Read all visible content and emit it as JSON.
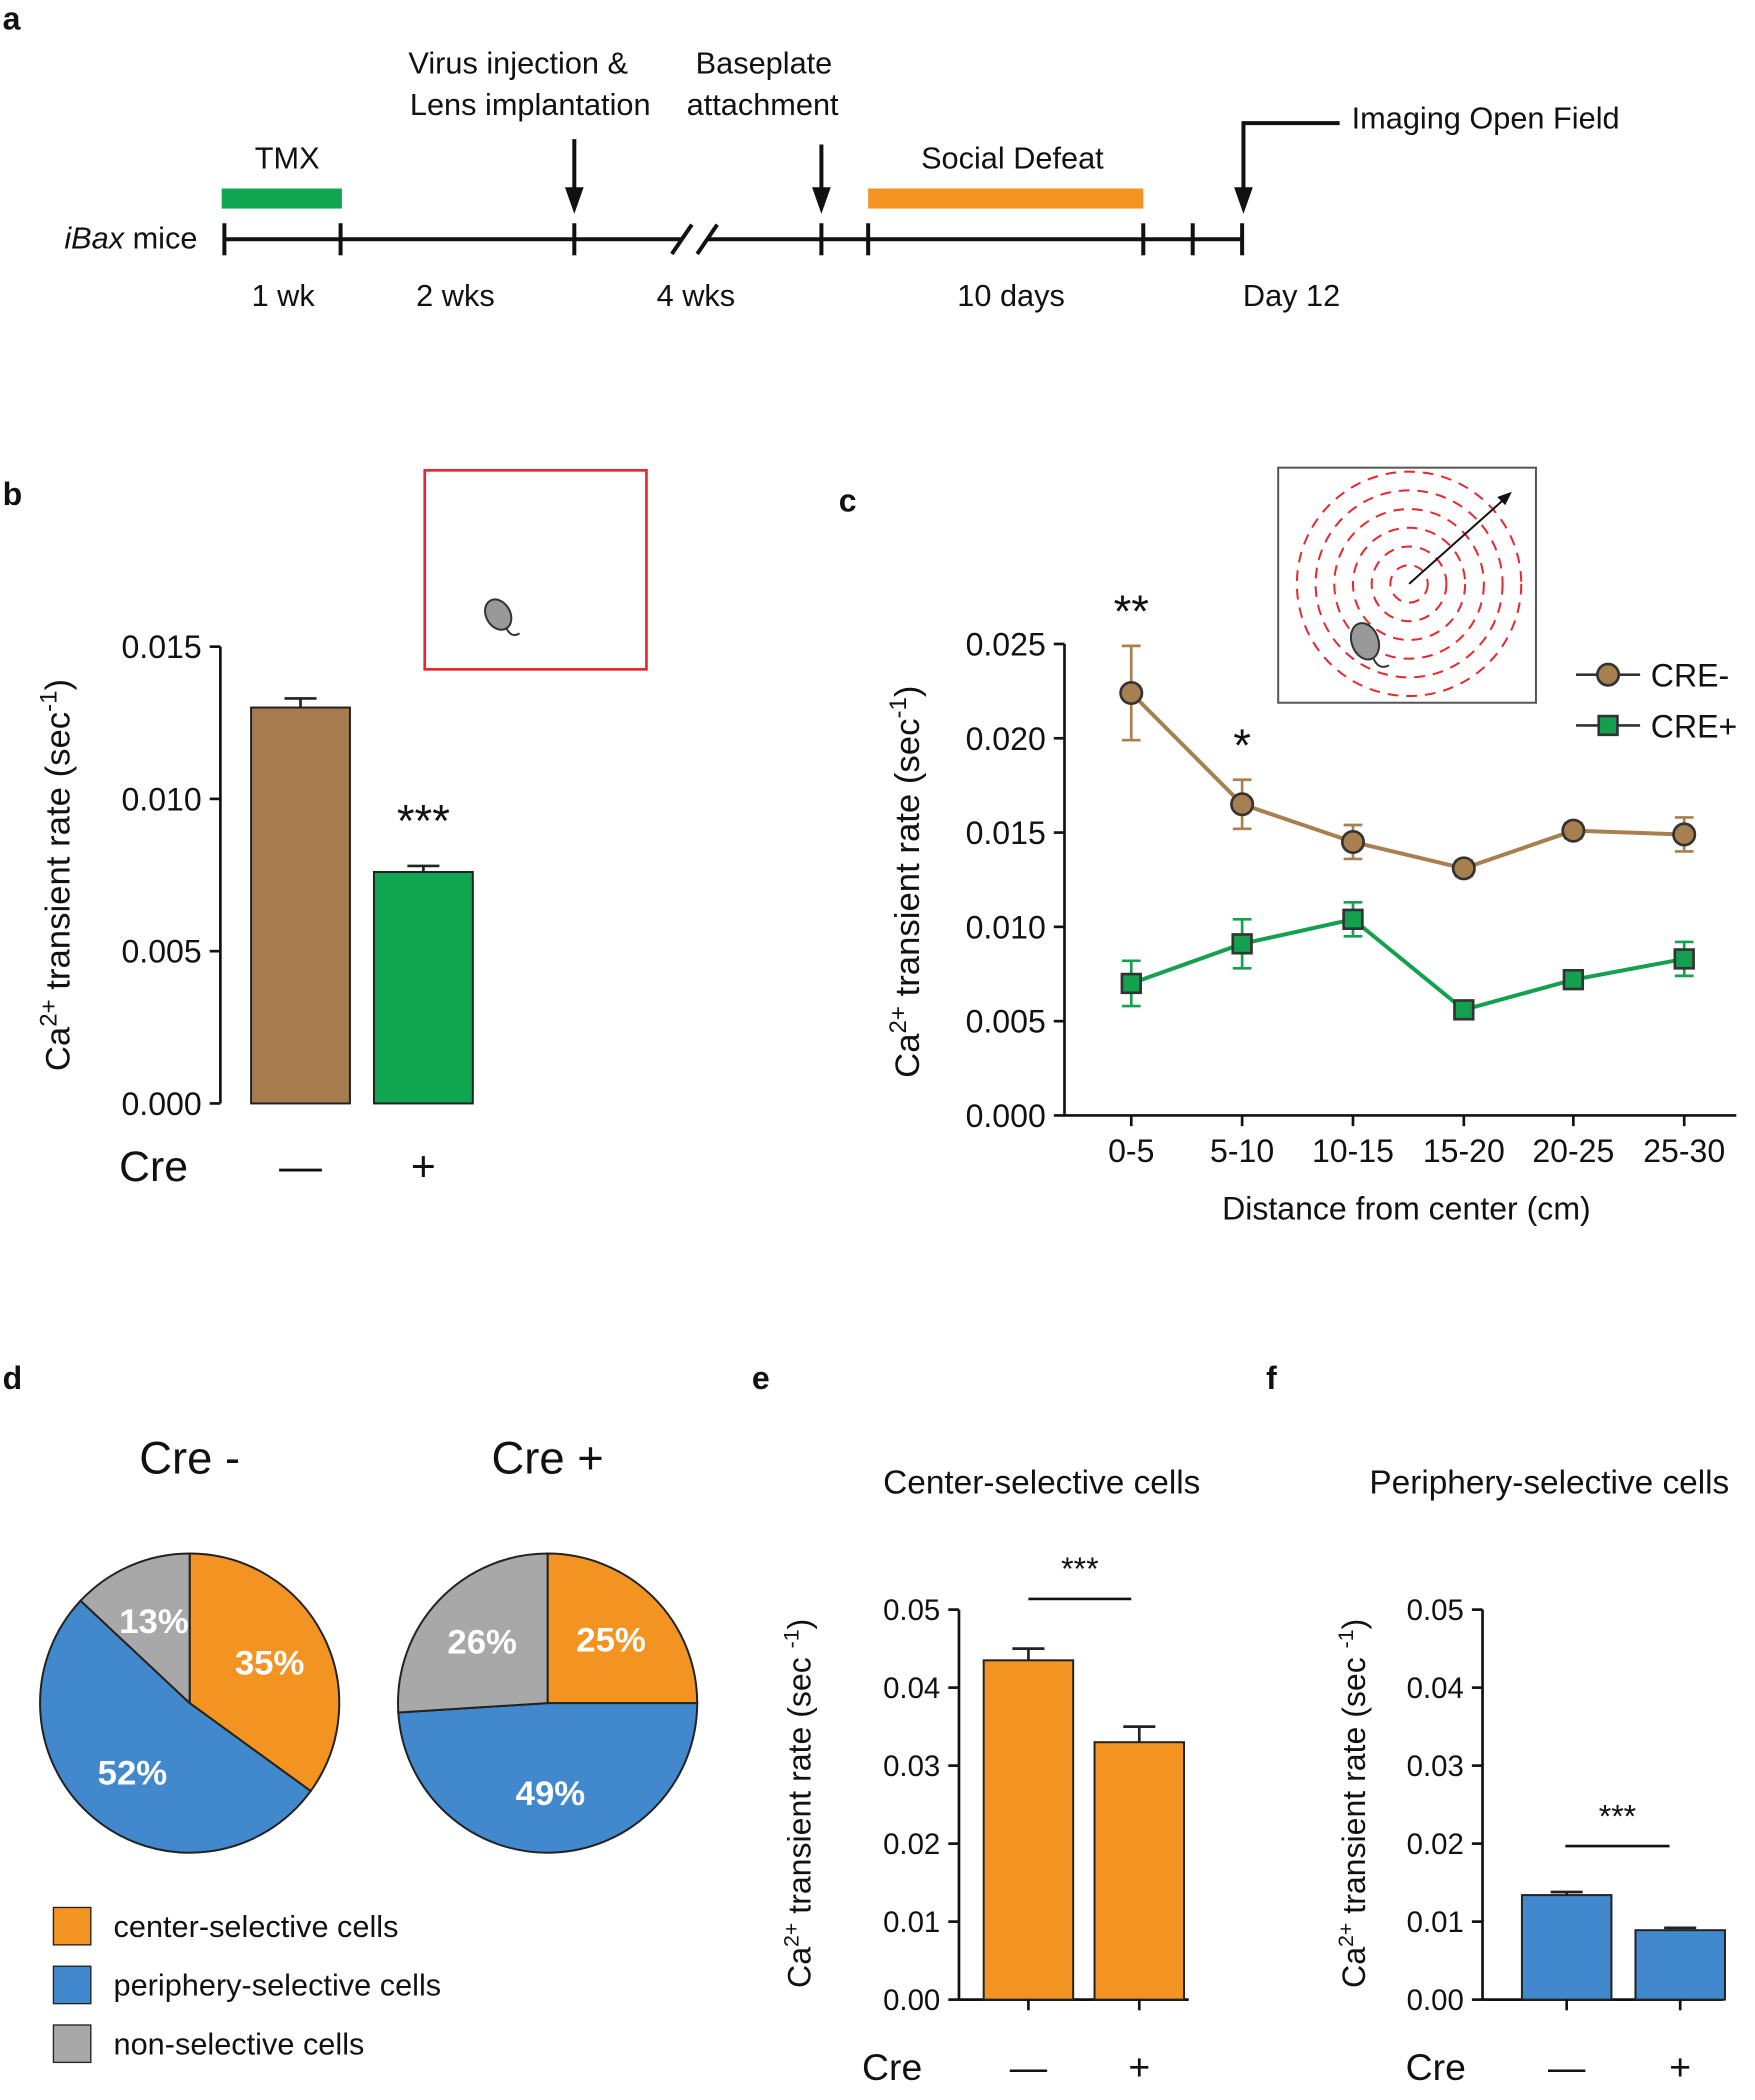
{
  "timeline": {
    "panel": "a",
    "subject": [
      "iBax",
      "mice"
    ],
    "treatments": [
      "TMX",
      "Social Defeat"
    ],
    "events": [
      [
        "Virus injection &",
        "Lens implantation"
      ],
      [
        "Baseplate",
        "attachment"
      ],
      "Imaging Open Field"
    ],
    "durations": [
      "1 wk",
      "2 wks",
      "4 wks",
      "10 days",
      "Day 12"
    ]
  },
  "chart_data": [
    {
      "type": "bar",
      "panel": "b",
      "y_label": [
        "Ca",
        "2+",
        " transient rate (sec",
        "-1",
        ")"
      ],
      "x_label": "Cre",
      "categories": [
        "—",
        "+"
      ],
      "values": [
        0.013,
        0.0076
      ],
      "errors": [
        0.0003,
        0.0002
      ],
      "colors": [
        "#a67c4e",
        "#10a551"
      ],
      "annotations": [
        "***"
      ],
      "ylim": [
        0,
        0.015
      ],
      "yticks": [
        {
          "value": 0,
          "label": "0.000"
        },
        {
          "value": 0.005,
          "label": "0.005"
        },
        {
          "value": 0.01,
          "label": "0.010"
        },
        {
          "value": 0.015,
          "label": "0.015"
        }
      ]
    },
    {
      "type": "line",
      "panel": "c",
      "y_label": [
        "Ca",
        "2+",
        " transient rate (sec",
        "-1",
        ")"
      ],
      "x_label": "Distance from center (cm)",
      "categories": [
        "0-5",
        "5-10",
        "10-15",
        "15-20",
        "20-25",
        "25-30"
      ],
      "series": [
        {
          "name": "CRE-",
          "color": "#a8804f",
          "marker": "circle",
          "values": [
            0.0224,
            0.0165,
            0.0145,
            0.0131,
            0.0151,
            0.0149
          ],
          "errors": [
            0.0025,
            0.0013,
            0.0009,
            0.0004,
            0.0004,
            0.0009
          ]
        },
        {
          "name": "CRE+",
          "color": "#13a14f",
          "marker": "square",
          "values": [
            0.007,
            0.0091,
            0.0104,
            0.0056,
            0.0072,
            0.0083
          ],
          "errors": [
            0.0012,
            0.0013,
            0.0009,
            0.0003,
            0.0003,
            0.0009
          ]
        }
      ],
      "annotations": [
        "**",
        "*"
      ],
      "ylim": [
        0,
        0.025
      ],
      "yticks": [
        {
          "value": 0,
          "label": "0.000"
        },
        {
          "value": 0.005,
          "label": "0.005"
        },
        {
          "value": 0.01,
          "label": "0.010"
        },
        {
          "value": 0.015,
          "label": "0.015"
        },
        {
          "value": 0.02,
          "label": "0.020"
        },
        {
          "value": 0.025,
          "label": "0.025"
        }
      ]
    },
    {
      "type": "pie",
      "panel": "d",
      "categories": [
        "center-selective cells",
        "periphery-selective cells",
        "non-selective cells"
      ],
      "colors": [
        "#f39322",
        "#4189cc",
        "#a8a8a8"
      ],
      "pies": [
        {
          "title": "Cre -",
          "values": [
            35,
            52,
            13
          ],
          "value_labels": [
            "35%",
            "52%",
            "13%"
          ]
        },
        {
          "title": "Cre +",
          "values": [
            25,
            49,
            26
          ],
          "value_labels": [
            "25%",
            "49%",
            "26%"
          ]
        }
      ]
    },
    {
      "type": "bar",
      "panel": "e",
      "title": "Center-selective cells",
      "y_label": [
        "Ca",
        "2+",
        " transient rate (sec ",
        "-1",
        ")"
      ],
      "x_label": "Cre",
      "categories": [
        "—",
        "+"
      ],
      "values": [
        0.0435,
        0.033
      ],
      "errors": [
        0.0015,
        0.002
      ],
      "colors": [
        "#f39322",
        "#f39322"
      ],
      "annotations": [
        "***"
      ],
      "ylim": [
        0,
        0.05
      ],
      "yticks": [
        {
          "value": 0,
          "label": "0.00"
        },
        {
          "value": 0.01,
          "label": "0.01"
        },
        {
          "value": 0.02,
          "label": "0.02"
        },
        {
          "value": 0.03,
          "label": "0.03"
        },
        {
          "value": 0.04,
          "label": "0.04"
        },
        {
          "value": 0.05,
          "label": "0.05"
        }
      ]
    },
    {
      "type": "bar",
      "panel": "f",
      "title": "Periphery-selective cells",
      "y_label": [
        "Ca",
        "2+",
        " transient rate (sec ",
        "-1",
        ")"
      ],
      "x_label": "Cre",
      "categories": [
        "—",
        "+"
      ],
      "values": [
        0.0134,
        0.0089
      ],
      "errors": [
        0.0004,
        0.0003
      ],
      "colors": [
        "#4189cc",
        "#4189cc"
      ],
      "annotations": [
        "***"
      ],
      "ylim": [
        0,
        0.05
      ],
      "yticks": [
        {
          "value": 0,
          "label": "0.00"
        },
        {
          "value": 0.01,
          "label": "0.01"
        },
        {
          "value": 0.02,
          "label": "0.02"
        },
        {
          "value": 0.03,
          "label": "0.03"
        },
        {
          "value": 0.04,
          "label": "0.04"
        },
        {
          "value": 0.05,
          "label": "0.05"
        }
      ]
    }
  ]
}
